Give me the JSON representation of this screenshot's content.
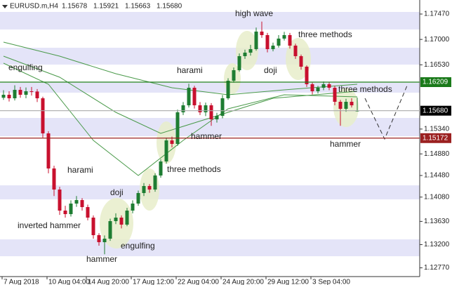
{
  "chart_data": {
    "type": "candlestick",
    "title": "EURUSD.m,H4",
    "header_ohlc": [
      "1.15678",
      "1.15921",
      "1.15663",
      "1.15680"
    ],
    "up_color": "#1e7d32",
    "down_color": "#c8102e",
    "open": [
      1.1592,
      1.15975,
      1.1591,
      1.16066,
      1.15975,
      1.1604,
      1.16035,
      1.1591,
      1.1526,
      1.1461,
      1.1422,
      1.1383,
      1.13765,
      1.1396,
      1.14025,
      1.13895,
      1.137,
      1.13375,
      1.13245,
      1.1331,
      1.13635,
      1.137,
      1.1357,
      1.1383,
      1.1396,
      1.14155,
      1.14285,
      1.1422,
      1.1448,
      1.1474,
      1.1513,
      1.15065,
      1.1565,
      1.1578,
      1.16105,
      1.1578,
      1.1565,
      1.1578,
      1.1552,
      1.15585,
      1.1591,
      1.16235,
      1.1643,
      1.1669,
      1.16755,
      1.1682,
      1.17145,
      1.1708,
      1.1682,
      1.16885,
      1.17015,
      1.1708,
      1.16885,
      1.1669,
      1.16495,
      1.1617,
      1.1604,
      1.16105,
      1.1617,
      1.16105,
      1.15845,
      1.15715,
      1.15845,
      1.15678
    ],
    "high": [
      1.1606,
      1.1604,
      1.1615,
      1.1612,
      1.1611,
      1.1612,
      1.1608,
      1.1594,
      1.153,
      1.1466,
      1.1427,
      1.1392,
      1.1402,
      1.141,
      1.1406,
      1.1394,
      1.1374,
      1.1341,
      1.1337,
      1.1368,
      1.1378,
      1.1374,
      1.1388,
      1.1402,
      1.142,
      1.1434,
      1.1432,
      1.1452,
      1.1478,
      1.1518,
      1.152,
      1.157,
      1.1584,
      1.1618,
      1.1614,
      1.1584,
      1.1583,
      1.1582,
      1.1564,
      1.1597,
      1.1628,
      1.1648,
      1.1674,
      1.1681,
      1.169,
      1.1722,
      1.1733,
      1.1712,
      1.1694,
      1.1708,
      1.1714,
      1.1712,
      1.1692,
      1.1672,
      1.1652,
      1.162,
      1.1614,
      1.1622,
      1.1621,
      1.1614,
      1.1588,
      1.159,
      1.1591,
      1.15921
    ],
    "low": [
      1.1588,
      1.1585,
      1.1587,
      1.1592,
      1.1591,
      1.1596,
      1.1584,
      1.1518,
      1.1452,
      1.141,
      1.1375,
      1.137,
      1.1372,
      1.139,
      1.1383,
      1.1365,
      1.1331,
      1.1318,
      1.1302,
      1.1327,
      1.1358,
      1.135,
      1.1354,
      1.1378,
      1.1392,
      1.141,
      1.1416,
      1.1418,
      1.1444,
      1.147,
      1.15,
      1.1503,
      1.156,
      1.1574,
      1.1572,
      1.156,
      1.1558,
      1.154,
      1.1546,
      1.1554,
      1.1588,
      1.162,
      1.164,
      1.1664,
      1.167,
      1.1679,
      1.1703,
      1.1676,
      1.1678,
      1.1685,
      1.1698,
      1.1683,
      1.1664,
      1.1644,
      1.1612,
      1.1598,
      1.16,
      1.1606,
      1.1606,
      1.1578,
      1.154,
      1.1566,
      1.1574,
      1.15663
    ],
    "close": [
      1.15975,
      1.1591,
      1.16066,
      1.15975,
      1.1604,
      1.16035,
      1.1591,
      1.1526,
      1.1461,
      1.1422,
      1.1383,
      1.13765,
      1.1396,
      1.14025,
      1.13895,
      1.137,
      1.13375,
      1.13245,
      1.1331,
      1.13635,
      1.137,
      1.1357,
      1.1383,
      1.1396,
      1.14155,
      1.14285,
      1.1422,
      1.1448,
      1.1474,
      1.1513,
      1.15065,
      1.1565,
      1.1578,
      1.16105,
      1.1578,
      1.1565,
      1.1578,
      1.1552,
      1.15585,
      1.1591,
      1.16235,
      1.1643,
      1.1669,
      1.16755,
      1.1682,
      1.17145,
      1.1708,
      1.1682,
      1.16885,
      1.17015,
      1.1708,
      1.16885,
      1.1669,
      1.16495,
      1.1617,
      1.1604,
      1.16105,
      1.1617,
      1.16105,
      1.15845,
      1.15715,
      1.15845,
      1.1578,
      1.1568
    ],
    "moving_averages": [
      {
        "color": "#4a9a4a",
        "x": [
          0,
          10,
          20,
          30,
          40,
          50,
          63
        ],
        "values": [
          1.1695,
          1.1669,
          1.16365,
          1.16105,
          1.15975,
          1.16066,
          1.1617
        ]
      },
      {
        "color": "#4a9a4a",
        "x": [
          0,
          10,
          20,
          28,
          38,
          48,
          63
        ],
        "values": [
          1.1669,
          1.163,
          1.1565,
          1.1526,
          1.15585,
          1.1591,
          1.1604
        ]
      },
      {
        "color": "#4a9a4a",
        "x": [
          0,
          8,
          16,
          24,
          32,
          40,
          50,
          63
        ],
        "values": [
          1.1656,
          1.1617,
          1.1513,
          1.1448,
          1.1513,
          1.15715,
          1.15975,
          1.15936
        ]
      }
    ],
    "hlines": [
      {
        "value": 1.16209,
        "label": "1.16209",
        "color": "#1a7a1a",
        "box": "#1a7a1a"
      },
      {
        "value": 1.1568,
        "label": "1.15680",
        "color": "#aaaaaa",
        "box": "#000000"
      },
      {
        "value": 1.15172,
        "label": "1.15172",
        "color": "#9b2020",
        "box": "#9b2020"
      }
    ],
    "annotations": [
      "engulfing",
      "harami",
      "doji",
      "inverted hammer",
      "engulfing",
      "hammer",
      "three methods",
      "hammer",
      "harami",
      "high wave",
      "doji",
      "three methods",
      "three methods",
      "hammer"
    ],
    "xticks": [
      {
        "value": 0,
        "label": "7 Aug 2018"
      },
      {
        "value": 8,
        "label": "10 Aug 04:00"
      },
      {
        "value": 15,
        "label": "14 Aug 20:00"
      },
      {
        "value": 23,
        "label": "17 Aug 12:00"
      },
      {
        "value": 31,
        "label": "22 Aug 04:00"
      },
      {
        "value": 39,
        "label": "24 Aug 20:00"
      },
      {
        "value": 47,
        "label": "29 Aug 12:00"
      },
      {
        "value": 55,
        "label": "3 Sep 04:00"
      }
    ],
    "ylim": [
      1.12608,
      1.1773
    ],
    "yticks": [
      {
        "value": 1.1747,
        "label": "1.17470"
      },
      {
        "value": 1.17,
        "label": "1.17000"
      },
      {
        "value": 1.1653,
        "label": "1.16530"
      },
      {
        "value": 1.1534,
        "label": "1.15340"
      },
      {
        "value": 1.1488,
        "label": "1.14880"
      },
      {
        "value": 1.1448,
        "label": "1.14480"
      },
      {
        "value": 1.1408,
        "label": "1.14080"
      },
      {
        "value": 1.1363,
        "label": "1.13630"
      },
      {
        "value": 1.132,
        "label": "1.13200"
      },
      {
        "value": 1.1277,
        "label": "1.12770"
      }
    ]
  }
}
